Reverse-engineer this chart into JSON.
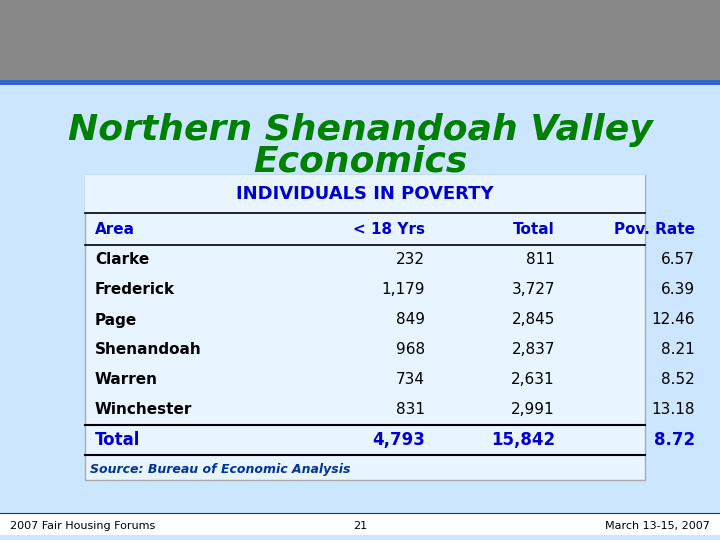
{
  "title_line1": "Northern Shenandoah Valley",
  "title_line2": "Economics",
  "title_color": "#008000",
  "table_title": "INDIVIDUALS IN POVERTY",
  "table_title_color": "#0000CC",
  "header_row": [
    "Area",
    "< 18 Yrs",
    "Total",
    "Pov. Rate"
  ],
  "header_color": "#0000CC",
  "data_rows": [
    [
      "Clarke",
      "232",
      "811",
      "6.57"
    ],
    [
      "Frederick",
      "1,179",
      "3,727",
      "6.39"
    ],
    [
      "Page",
      "849",
      "2,845",
      "12.46"
    ],
    [
      "Shenandoah",
      "968",
      "2,837",
      "8.21"
    ],
    [
      "Warren",
      "734",
      "2,631",
      "8.52"
    ],
    [
      "Winchester",
      "831",
      "2,991",
      "13.18"
    ]
  ],
  "total_row": [
    "Total",
    "4,793",
    "15,842",
    "8.72"
  ],
  "total_color": "#0000CC",
  "source_text": "Source: Bureau of Economic Analysis",
  "footer_left": "2007 Fair Housing Forums",
  "footer_center": "21",
  "footer_right": "March 13-15, 2007",
  "bg_color": "#cce6ff",
  "table_bg": "#d6eeff",
  "header_strip_color": "#ffffff",
  "top_bar_color": "#3366cc",
  "bottom_bar_color": "#3366cc",
  "body_text_color": "#000000",
  "row_text_color": "#000000"
}
